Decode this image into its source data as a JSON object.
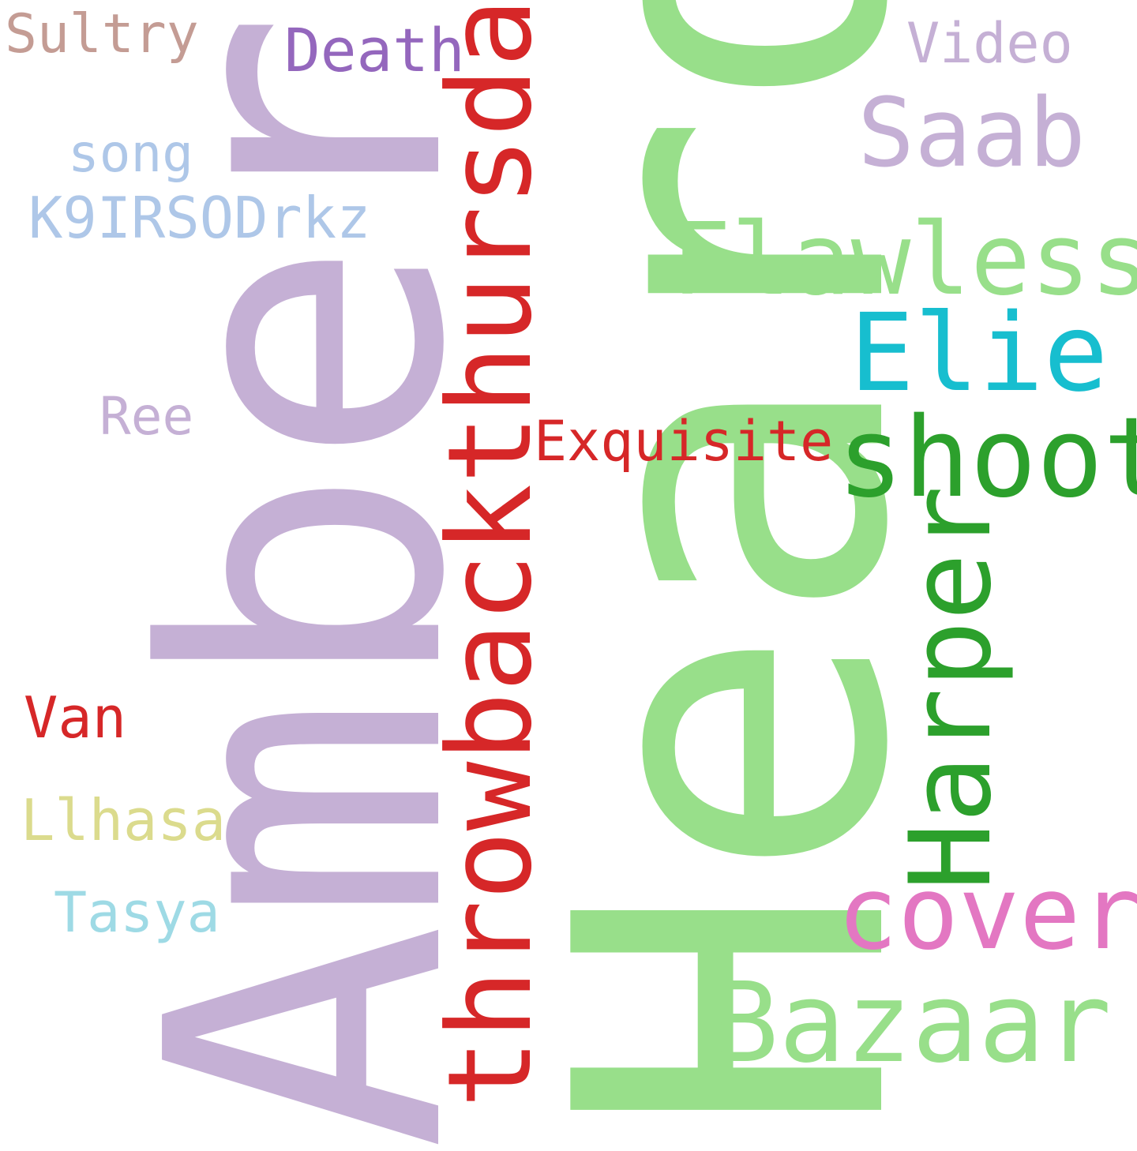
{
  "words": {
    "amber": {
      "text": "Amber",
      "color": "#c5b0d5"
    },
    "heard": {
      "text": "Heard",
      "color": "#98df8a"
    },
    "throwback": {
      "text": "throwbackthursday",
      "color": "#d62728"
    },
    "harper": {
      "text": "Harper",
      "color": "#2ca02c"
    },
    "shoot": {
      "text": "shoot",
      "color": "#2ca02c"
    },
    "flawless": {
      "text": "Flawless",
      "color": "#98df8a"
    },
    "bazaar": {
      "text": "Bazaar",
      "color": "#98df8a"
    },
    "cover": {
      "text": "cover",
      "color": "#e377c2"
    },
    "elie": {
      "text": "Elie",
      "color": "#17becf"
    },
    "saab": {
      "text": "Saab",
      "color": "#c5b0d5"
    },
    "exquisite": {
      "text": "Exquisite",
      "color": "#d62728"
    },
    "death": {
      "text": "Death",
      "color": "#9467bd"
    },
    "video": {
      "text": "Video",
      "color": "#c5b0d5"
    },
    "sultry": {
      "text": "Sultry",
      "color": "#c49c94"
    },
    "song": {
      "text": "song",
      "color": "#aec7e8"
    },
    "k9": {
      "text": "K9IRSODrkz",
      "color": "#aec7e8"
    },
    "ree": {
      "text": "Ree",
      "color": "#c5b0d5"
    },
    "van": {
      "text": "Van",
      "color": "#d62728"
    },
    "llhasa": {
      "text": "Llhasa",
      "color": "#dbdb8d"
    },
    "tasya": {
      "text": "Tasya",
      "color": "#9edae5"
    }
  }
}
